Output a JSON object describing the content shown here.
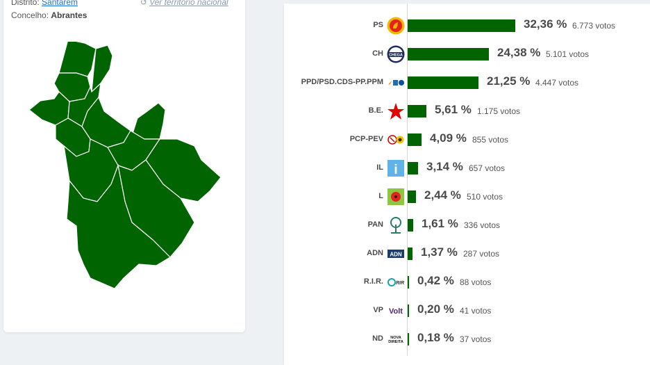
{
  "location": {
    "distrito_label": "Distrito:",
    "distrito_value": "Santarém",
    "concelho_label": "Concelho:",
    "concelho_value": "Abrantes",
    "back_link": "Ver território nacional"
  },
  "map": {
    "fill_color": "#006400",
    "border_color": "#ffffff"
  },
  "colors": {
    "bar": "#006400",
    "text": "#4a4a4a"
  },
  "results": [
    {
      "party": "PS",
      "pct": "32,36 %",
      "votes": "6.773 votos",
      "value": 32.36,
      "logo": "ps-fist-rose-icon"
    },
    {
      "party": "CH",
      "pct": "24,38 %",
      "votes": "5.101 votos",
      "value": 24.38,
      "logo": "chega-icon",
      "logo_text": "CHEGA"
    },
    {
      "party": "PPD/PSD.CDS-PP.PPM",
      "pct": "21,25 %",
      "votes": "4.447 votos",
      "value": 21.25,
      "logo": "ad-coalition-icon"
    },
    {
      "party": "B.E.",
      "pct": "5,61 %",
      "votes": "1.175 votos",
      "value": 5.61,
      "logo": "be-star-icon"
    },
    {
      "party": "PCP-PEV",
      "pct": "4,09 %",
      "votes": "855 votos",
      "value": 4.09,
      "logo": "cdu-hammer-sickle-sunflower-icon"
    },
    {
      "party": "IL",
      "pct": "3,14 %",
      "votes": "657 votos",
      "value": 3.14,
      "logo": "il-icon",
      "logo_text": "i"
    },
    {
      "party": "L",
      "pct": "2,44 %",
      "votes": "510 votos",
      "value": 2.44,
      "logo": "livre-poppy-icon"
    },
    {
      "party": "PAN",
      "pct": "1,61 %",
      "votes": "336 votos",
      "value": 1.61,
      "logo": "pan-tree-icon"
    },
    {
      "party": "ADN",
      "pct": "1,37 %",
      "votes": "287 votos",
      "value": 1.37,
      "logo": "adn-icon",
      "logo_text": "ADN"
    },
    {
      "party": "R.I.R.",
      "pct": "0,42 %",
      "votes": "88 votos",
      "value": 0.42,
      "logo": "rir-icon",
      "logo_text": "RIR"
    },
    {
      "party": "VP",
      "pct": "0,20 %",
      "votes": "41 votos",
      "value": 0.2,
      "logo": "volt-icon",
      "logo_text": "Volt"
    },
    {
      "party": "ND",
      "pct": "0,18 %",
      "votes": "37 votos",
      "value": 0.18,
      "logo": "nova-direita-icon",
      "logo_text": "NOVA DIREITA"
    }
  ]
}
